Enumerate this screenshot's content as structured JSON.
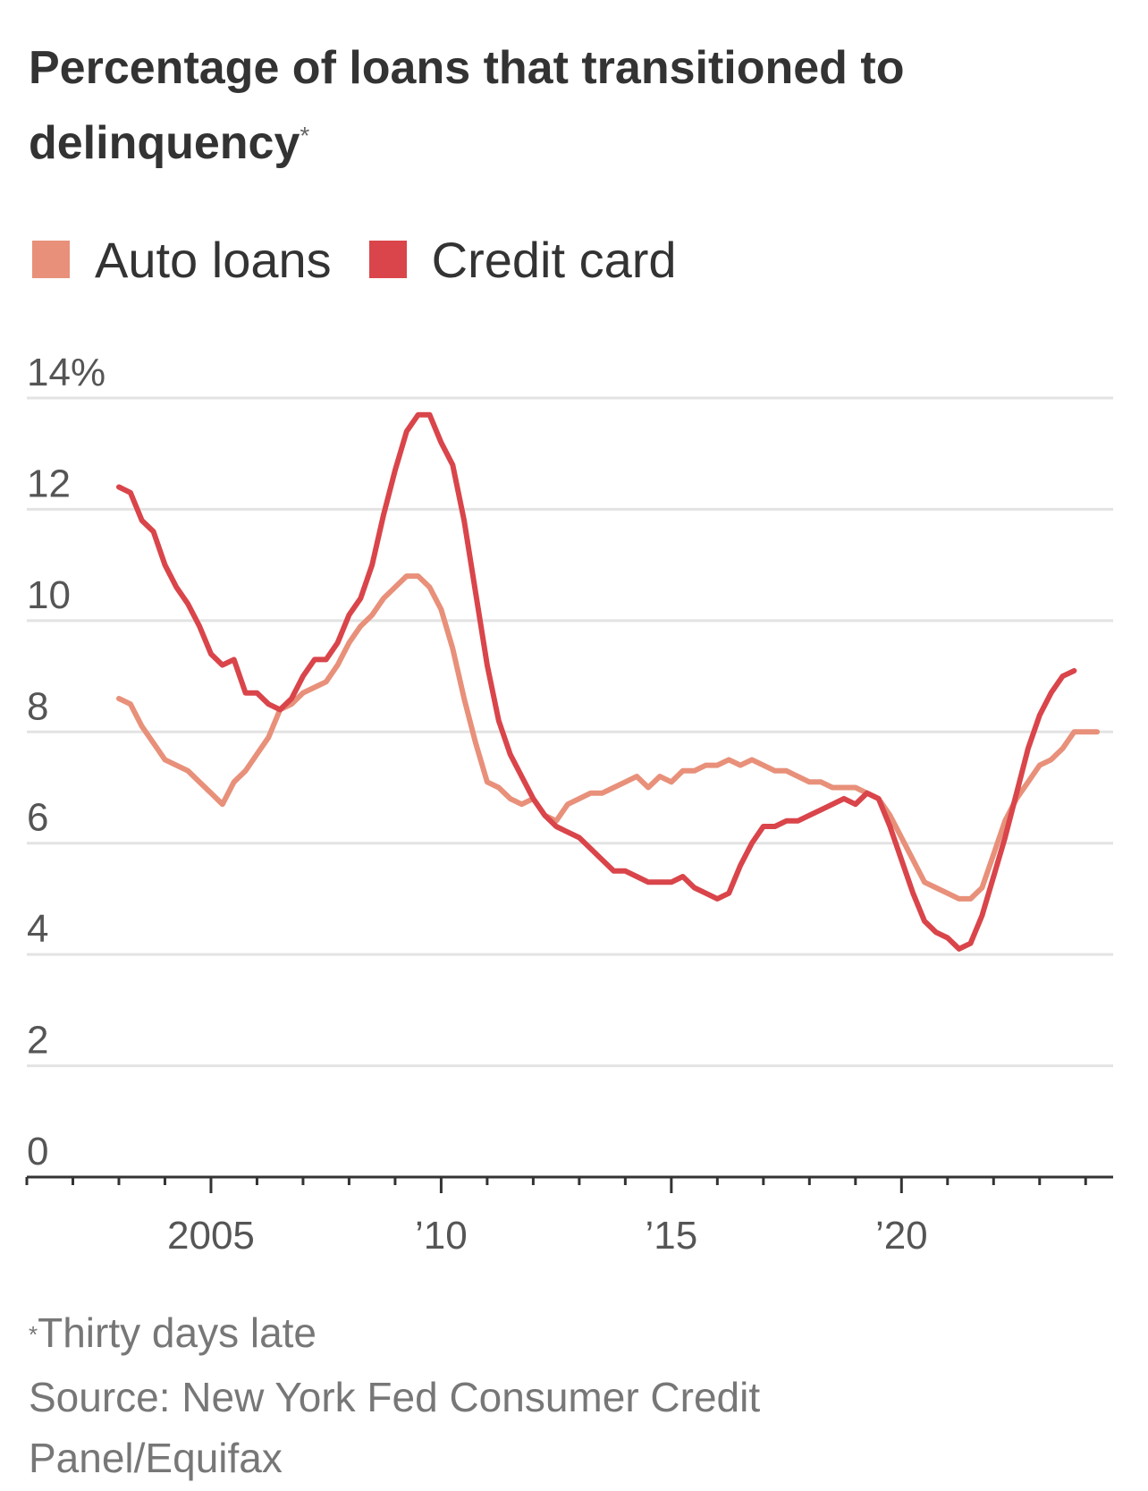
{
  "title": "Percentage of loans that transitioned to delinquency",
  "title_marker": "*",
  "footnote_marker": "*",
  "footnote": "Thirty days late",
  "source": "Source: New York Fed Consumer Credit Panel/Equifax",
  "colors": {
    "auto_loans": "#e8907a",
    "credit_card": "#d9454a",
    "grid": "#e3e3e3",
    "axis": "#333333",
    "text": "#333333",
    "muted": "#777777"
  },
  "chart_data": {
    "type": "line",
    "title": "Percentage of loans that transitioned to delinquency",
    "xlabel": "",
    "ylabel": "",
    "xlim": [
      2001,
      2024.5
    ],
    "ylim": [
      0,
      14
    ],
    "y_ticks": [
      {
        "value": 14,
        "label": "14%"
      },
      {
        "value": 12,
        "label": "12"
      },
      {
        "value": 10,
        "label": "10"
      },
      {
        "value": 8,
        "label": "8"
      },
      {
        "value": 6,
        "label": "6"
      },
      {
        "value": 4,
        "label": "4"
      },
      {
        "value": 2,
        "label": "2"
      },
      {
        "value": 0,
        "label": "0"
      }
    ],
    "x_ticks": [
      {
        "value": 2005,
        "label": "2005"
      },
      {
        "value": 2010,
        "label": "’10"
      },
      {
        "value": 2015,
        "label": "’15"
      },
      {
        "value": 2020,
        "label": "’20"
      }
    ],
    "grid": true,
    "legend_position": "top-left",
    "series": [
      {
        "name": "Auto loans",
        "color": "#e8907a",
        "points": [
          [
            2003.0,
            8.6
          ],
          [
            2003.25,
            8.5
          ],
          [
            2003.5,
            8.1
          ],
          [
            2003.75,
            7.8
          ],
          [
            2004.0,
            7.5
          ],
          [
            2004.5,
            7.3
          ],
          [
            2004.75,
            7.1
          ],
          [
            2005.0,
            6.9
          ],
          [
            2005.25,
            6.7
          ],
          [
            2005.5,
            7.1
          ],
          [
            2005.75,
            7.3
          ],
          [
            2006.0,
            7.6
          ],
          [
            2006.25,
            7.9
          ],
          [
            2006.5,
            8.4
          ],
          [
            2006.75,
            8.5
          ],
          [
            2007.0,
            8.7
          ],
          [
            2007.25,
            8.8
          ],
          [
            2007.5,
            8.9
          ],
          [
            2007.75,
            9.2
          ],
          [
            2008.0,
            9.6
          ],
          [
            2008.25,
            9.9
          ],
          [
            2008.5,
            10.1
          ],
          [
            2008.75,
            10.4
          ],
          [
            2009.0,
            10.6
          ],
          [
            2009.25,
            10.8
          ],
          [
            2009.5,
            10.8
          ],
          [
            2009.75,
            10.6
          ],
          [
            2010.0,
            10.2
          ],
          [
            2010.25,
            9.5
          ],
          [
            2010.5,
            8.6
          ],
          [
            2010.75,
            7.8
          ],
          [
            2011.0,
            7.1
          ],
          [
            2011.25,
            7.0
          ],
          [
            2011.5,
            6.8
          ],
          [
            2011.75,
            6.7
          ],
          [
            2012.0,
            6.8
          ],
          [
            2012.25,
            6.5
          ],
          [
            2012.5,
            6.4
          ],
          [
            2012.75,
            6.7
          ],
          [
            2013.0,
            6.8
          ],
          [
            2013.25,
            6.9
          ],
          [
            2013.5,
            6.9
          ],
          [
            2013.75,
            7.0
          ],
          [
            2014.0,
            7.1
          ],
          [
            2014.25,
            7.2
          ],
          [
            2014.5,
            7.0
          ],
          [
            2014.75,
            7.2
          ],
          [
            2015.0,
            7.1
          ],
          [
            2015.25,
            7.3
          ],
          [
            2015.5,
            7.3
          ],
          [
            2015.75,
            7.4
          ],
          [
            2016.0,
            7.4
          ],
          [
            2016.25,
            7.5
          ],
          [
            2016.5,
            7.4
          ],
          [
            2016.75,
            7.5
          ],
          [
            2017.0,
            7.4
          ],
          [
            2017.25,
            7.3
          ],
          [
            2017.5,
            7.3
          ],
          [
            2017.75,
            7.2
          ],
          [
            2018.0,
            7.1
          ],
          [
            2018.25,
            7.1
          ],
          [
            2018.5,
            7.0
          ],
          [
            2018.75,
            7.0
          ],
          [
            2019.0,
            7.0
          ],
          [
            2019.25,
            6.9
          ],
          [
            2019.5,
            6.8
          ],
          [
            2019.75,
            6.5
          ],
          [
            2020.0,
            6.1
          ],
          [
            2020.25,
            5.7
          ],
          [
            2020.5,
            5.3
          ],
          [
            2020.75,
            5.2
          ],
          [
            2021.0,
            5.1
          ],
          [
            2021.25,
            5.0
          ],
          [
            2021.5,
            5.0
          ],
          [
            2021.75,
            5.2
          ],
          [
            2022.0,
            5.8
          ],
          [
            2022.25,
            6.4
          ],
          [
            2022.5,
            6.8
          ],
          [
            2022.75,
            7.1
          ],
          [
            2023.0,
            7.4
          ],
          [
            2023.25,
            7.5
          ],
          [
            2023.5,
            7.7
          ],
          [
            2023.75,
            8.0
          ],
          [
            2024.0,
            8.0
          ],
          [
            2024.25,
            8.0
          ]
        ]
      },
      {
        "name": "Credit card",
        "color": "#d9454a",
        "points": [
          [
            2003.0,
            12.4
          ],
          [
            2003.25,
            12.3
          ],
          [
            2003.5,
            11.8
          ],
          [
            2003.75,
            11.6
          ],
          [
            2004.0,
            11.0
          ],
          [
            2004.25,
            10.6
          ],
          [
            2004.5,
            10.3
          ],
          [
            2004.75,
            9.9
          ],
          [
            2005.0,
            9.4
          ],
          [
            2005.25,
            9.2
          ],
          [
            2005.5,
            9.3
          ],
          [
            2005.75,
            8.7
          ],
          [
            2006.0,
            8.7
          ],
          [
            2006.25,
            8.5
          ],
          [
            2006.5,
            8.4
          ],
          [
            2006.75,
            8.6
          ],
          [
            2007.0,
            9.0
          ],
          [
            2007.25,
            9.3
          ],
          [
            2007.5,
            9.3
          ],
          [
            2007.75,
            9.6
          ],
          [
            2008.0,
            10.1
          ],
          [
            2008.25,
            10.4
          ],
          [
            2008.5,
            11.0
          ],
          [
            2008.75,
            11.9
          ],
          [
            2009.0,
            12.7
          ],
          [
            2009.25,
            13.4
          ],
          [
            2009.5,
            13.7
          ],
          [
            2009.75,
            13.7
          ],
          [
            2010.0,
            13.2
          ],
          [
            2010.25,
            12.8
          ],
          [
            2010.5,
            11.8
          ],
          [
            2010.75,
            10.5
          ],
          [
            2011.0,
            9.2
          ],
          [
            2011.25,
            8.2
          ],
          [
            2011.5,
            7.6
          ],
          [
            2011.75,
            7.2
          ],
          [
            2012.0,
            6.8
          ],
          [
            2012.25,
            6.5
          ],
          [
            2012.5,
            6.3
          ],
          [
            2012.75,
            6.2
          ],
          [
            2013.0,
            6.1
          ],
          [
            2013.25,
            5.9
          ],
          [
            2013.5,
            5.7
          ],
          [
            2013.75,
            5.5
          ],
          [
            2014.0,
            5.5
          ],
          [
            2014.25,
            5.4
          ],
          [
            2014.5,
            5.3
          ],
          [
            2014.75,
            5.3
          ],
          [
            2015.0,
            5.3
          ],
          [
            2015.25,
            5.4
          ],
          [
            2015.5,
            5.2
          ],
          [
            2015.75,
            5.1
          ],
          [
            2016.0,
            5.0
          ],
          [
            2016.25,
            5.1
          ],
          [
            2016.5,
            5.6
          ],
          [
            2016.75,
            6.0
          ],
          [
            2017.0,
            6.3
          ],
          [
            2017.25,
            6.3
          ],
          [
            2017.5,
            6.4
          ],
          [
            2017.75,
            6.4
          ],
          [
            2018.0,
            6.5
          ],
          [
            2018.25,
            6.6
          ],
          [
            2018.5,
            6.7
          ],
          [
            2018.75,
            6.8
          ],
          [
            2019.0,
            6.7
          ],
          [
            2019.25,
            6.9
          ],
          [
            2019.5,
            6.8
          ],
          [
            2019.75,
            6.3
          ],
          [
            2020.0,
            5.7
          ],
          [
            2020.25,
            5.1
          ],
          [
            2020.5,
            4.6
          ],
          [
            2020.75,
            4.4
          ],
          [
            2021.0,
            4.3
          ],
          [
            2021.25,
            4.1
          ],
          [
            2021.5,
            4.2
          ],
          [
            2021.75,
            4.7
          ],
          [
            2022.0,
            5.4
          ],
          [
            2022.25,
            6.1
          ],
          [
            2022.5,
            6.9
          ],
          [
            2022.75,
            7.7
          ],
          [
            2023.0,
            8.3
          ],
          [
            2023.25,
            8.7
          ],
          [
            2023.5,
            9.0
          ],
          [
            2023.75,
            9.1
          ]
        ]
      }
    ]
  }
}
